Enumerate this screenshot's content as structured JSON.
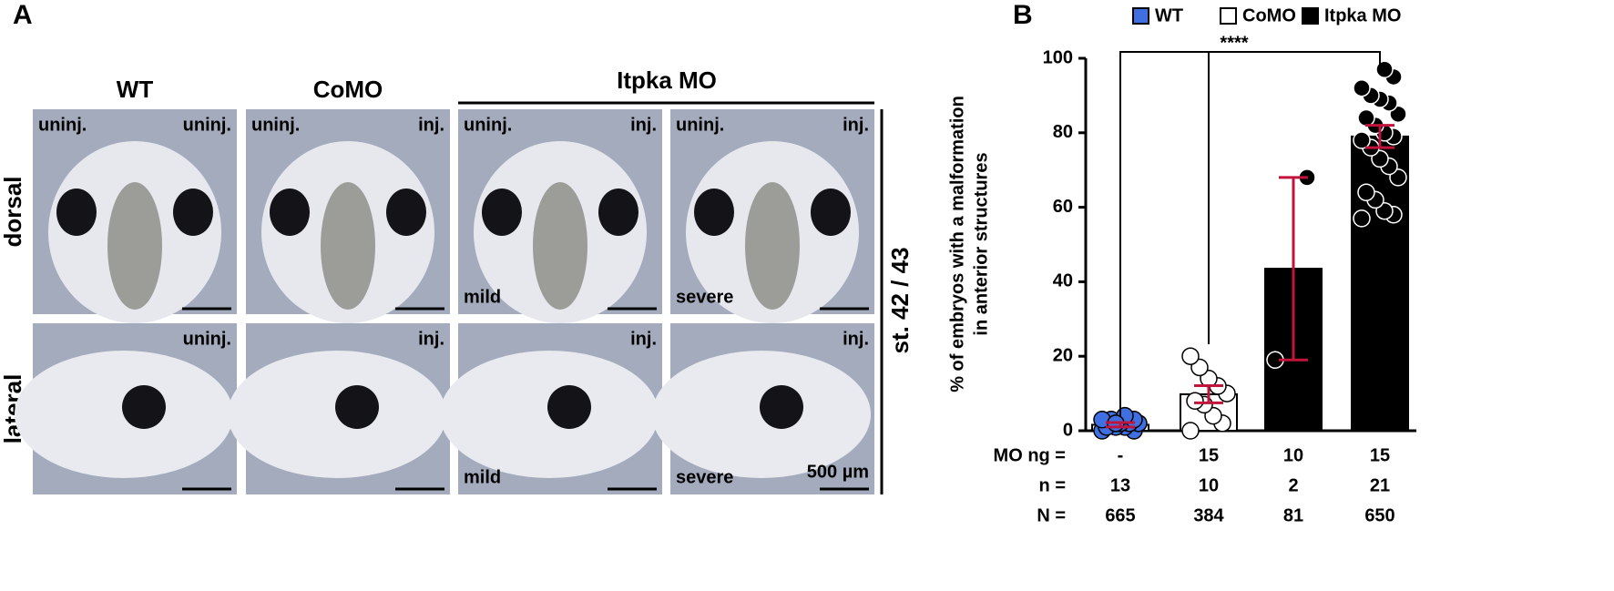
{
  "panel_a": {
    "label": "A",
    "columns": [
      "WT",
      "CoMO",
      "Itpka MO"
    ],
    "rows": [
      "dorsal",
      "lateral"
    ],
    "stage": "st. 42 / 43",
    "photos": [
      [
        {
          "tl": "uninj.",
          "tr": "uninj."
        },
        {
          "tl": "uninj.",
          "tr": "inj."
        },
        {
          "tl": "uninj.",
          "tr": "inj.",
          "bl": "mild"
        },
        {
          "tl": "uninj.",
          "tr": "inj.",
          "bl": "severe"
        }
      ],
      [
        {
          "tr": "uninj."
        },
        {
          "tr": "inj."
        },
        {
          "tr": "inj.",
          "bl": "mild"
        },
        {
          "tr": "inj.",
          "bl": "severe",
          "scale": "500 µm"
        }
      ]
    ]
  },
  "chart_data": {
    "type": "bar",
    "panel_label": "B",
    "ylabel": [
      "% of embryos with a malformation",
      "in anterior structures"
    ],
    "ylim": [
      0,
      100
    ],
    "yticks": [
      0,
      20,
      40,
      60,
      80,
      100
    ],
    "series": [
      {
        "name": "WT",
        "color": "#3f6fe0"
      },
      {
        "name": "CoMO",
        "color": "#ffffff"
      },
      {
        "name": "Itpka MO",
        "color": "#000000"
      }
    ],
    "bars": [
      {
        "series": 0,
        "fill": "#ffffff",
        "value": 1.6,
        "error": 0.6,
        "points": [
          0,
          0,
          1,
          1,
          1,
          2,
          2,
          2,
          3,
          3,
          3,
          4,
          2
        ]
      },
      {
        "series": 1,
        "fill": "#ffffff",
        "value": 9.8,
        "error": 2.3,
        "points": [
          0,
          2,
          4,
          7,
          8,
          10,
          12,
          14,
          17,
          20
        ]
      },
      {
        "series": 2,
        "fill": "#000000",
        "value": 43.5,
        "error": 24.5,
        "points": [
          19,
          68
        ]
      },
      {
        "series": 2,
        "fill": "#000000",
        "value": 79,
        "error": 3,
        "points": [
          57,
          58,
          59,
          62,
          64,
          68,
          71,
          73,
          76,
          78,
          79,
          80,
          82,
          84,
          85,
          88,
          89,
          90,
          92,
          95,
          97
        ]
      }
    ],
    "error_color": "#c0143c",
    "significance": "****",
    "table": [
      {
        "label": "MO ng =",
        "values": [
          "-",
          "15",
          "10",
          "15"
        ]
      },
      {
        "label": "n =",
        "values": [
          "13",
          "10",
          "2",
          "21"
        ]
      },
      {
        "label": "N =",
        "values": [
          "665",
          "384",
          "81",
          "650"
        ]
      }
    ]
  }
}
